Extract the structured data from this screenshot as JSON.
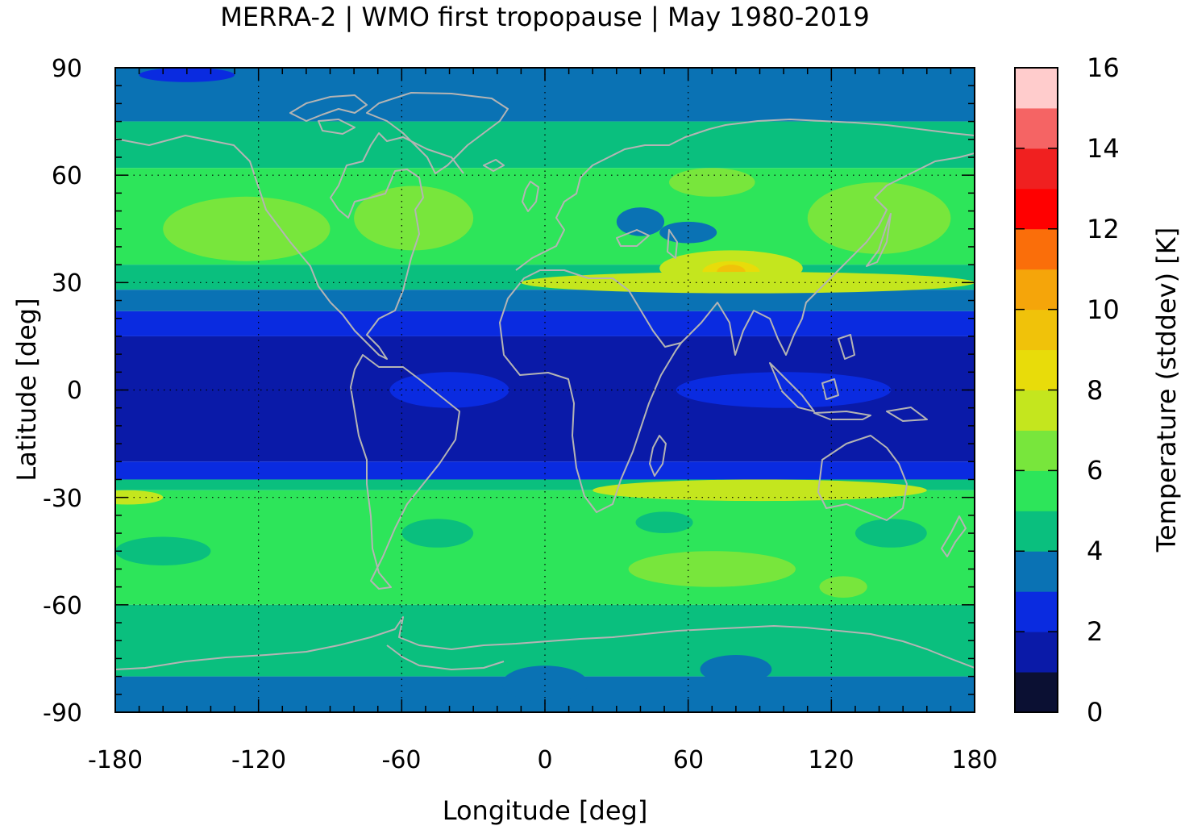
{
  "chart_data": {
    "type": "heatmap",
    "title": "MERRA-2 | WMO first tropopause | May 1980-2019",
    "xlabel": "Longitude [deg]",
    "ylabel": "Latitude [deg]",
    "xlim": [
      -180,
      180
    ],
    "ylim": [
      -90,
      90
    ],
    "x_ticks": [
      {
        "value": -180,
        "label": "-180"
      },
      {
        "value": -120,
        "label": "-120"
      },
      {
        "value": -60,
        "label": "-60"
      },
      {
        "value": 0,
        "label": "0"
      },
      {
        "value": 60,
        "label": "60"
      },
      {
        "value": 120,
        "label": "120"
      },
      {
        "value": 180,
        "label": "180"
      }
    ],
    "y_ticks": [
      {
        "value": 90,
        "label": "90"
      },
      {
        "value": 60,
        "label": "60"
      },
      {
        "value": 30,
        "label": "30"
      },
      {
        "value": 0,
        "label": "0"
      },
      {
        "value": -30,
        "label": "-30"
      },
      {
        "value": -60,
        "label": "-60"
      },
      {
        "value": -90,
        "label": "-90"
      }
    ],
    "grid": true,
    "colorbar": {
      "label": "Temperature (stddev) [K]",
      "range": [
        0,
        16
      ],
      "ticks": [
        {
          "value": 0,
          "label": "0"
        },
        {
          "value": 2,
          "label": "2"
        },
        {
          "value": 4,
          "label": "4"
        },
        {
          "value": 6,
          "label": "6"
        },
        {
          "value": 8,
          "label": "8"
        },
        {
          "value": 10,
          "label": "10"
        },
        {
          "value": 12,
          "label": "12"
        },
        {
          "value": 14,
          "label": "14"
        },
        {
          "value": 16,
          "label": "16"
        }
      ],
      "levels": [
        {
          "from": 0,
          "to": 1,
          "color": "#0b1033"
        },
        {
          "from": 1,
          "to": 2,
          "color": "#0a1aa8"
        },
        {
          "from": 2,
          "to": 3,
          "color": "#0a2be0"
        },
        {
          "from": 3,
          "to": 4,
          "color": "#0a72b4"
        },
        {
          "from": 4,
          "to": 5,
          "color": "#0abf7e"
        },
        {
          "from": 5,
          "to": 6,
          "color": "#2de55a"
        },
        {
          "from": 6,
          "to": 7,
          "color": "#78e63c"
        },
        {
          "from": 7,
          "to": 8,
          "color": "#c4e61e"
        },
        {
          "from": 8,
          "to": 9,
          "color": "#e8dc0a"
        },
        {
          "from": 9,
          "to": 10,
          "color": "#f0c20a"
        },
        {
          "from": 10,
          "to": 11,
          "color": "#f5a50a"
        },
        {
          "from": 11,
          "to": 12,
          "color": "#fa6e0a"
        },
        {
          "from": 12,
          "to": 13,
          "color": "#ff0000"
        },
        {
          "from": 13,
          "to": 14,
          "color": "#f02020"
        },
        {
          "from": 14,
          "to": 15,
          "color": "#f56464"
        },
        {
          "from": 15,
          "to": 16,
          "color": "#ffcccc"
        }
      ]
    },
    "zonal_pattern": [
      {
        "lat_from": 75,
        "lat_to": 90,
        "value": 3.5
      },
      {
        "lat_from": 62,
        "lat_to": 75,
        "value": 4.5
      },
      {
        "lat_from": 35,
        "lat_to": 62,
        "value": 5.5
      },
      {
        "lat_from": 28,
        "lat_to": 35,
        "value": 4.5
      },
      {
        "lat_from": 22,
        "lat_to": 28,
        "value": 3.5
      },
      {
        "lat_from": 15,
        "lat_to": 22,
        "value": 2.5
      },
      {
        "lat_from": -20,
        "lat_to": 15,
        "value": 1.5
      },
      {
        "lat_from": -25,
        "lat_to": -20,
        "value": 2.5
      },
      {
        "lat_from": -28,
        "lat_to": -25,
        "value": 4.5
      },
      {
        "lat_from": -60,
        "lat_to": -28,
        "value": 5.5
      },
      {
        "lat_from": -80,
        "lat_to": -60,
        "value": 4.5
      },
      {
        "lat_from": -90,
        "lat_to": -80,
        "value": 3.5
      }
    ],
    "features": [
      {
        "lon": -125,
        "lat": 45,
        "rx": 35,
        "ry": 9,
        "value": 6.5
      },
      {
        "lon": -55,
        "lat": 48,
        "rx": 25,
        "ry": 9,
        "value": 6.5
      },
      {
        "lon": 140,
        "lat": 48,
        "rx": 30,
        "ry": 10,
        "value": 6.5
      },
      {
        "lon": 70,
        "lat": 58,
        "rx": 18,
        "ry": 4,
        "value": 6.5
      },
      {
        "lon": 78,
        "lat": 34,
        "rx": 30,
        "ry": 5,
        "value": 7.5
      },
      {
        "lon": 78,
        "lat": 33,
        "rx": 12,
        "ry": 3,
        "value": 8.5
      },
      {
        "lon": 78,
        "lat": 33,
        "rx": 6,
        "ry": 2,
        "value": 9.5
      },
      {
        "lon": 85,
        "lat": 30,
        "rx": 95,
        "ry": 3,
        "value": 7.0
      },
      {
        "lon": 60,
        "lat": 44,
        "rx": 12,
        "ry": 3,
        "value": 3.5
      },
      {
        "lon": 40,
        "lat": 47,
        "rx": 10,
        "ry": 4,
        "value": 3.5
      },
      {
        "lon": 90,
        "lat": -28,
        "rx": 70,
        "ry": 3,
        "value": 7.5
      },
      {
        "lon": -175,
        "lat": -30,
        "rx": 15,
        "ry": 2,
        "value": 7.5
      },
      {
        "lon": 70,
        "lat": -50,
        "rx": 35,
        "ry": 5,
        "value": 6.5
      },
      {
        "lon": 125,
        "lat": -55,
        "rx": 10,
        "ry": 3,
        "value": 6.5
      },
      {
        "lon": 50,
        "lat": -37,
        "rx": 12,
        "ry": 3,
        "value": 4.5
      },
      {
        "lon": -45,
        "lat": -40,
        "rx": 15,
        "ry": 4,
        "value": 4.5
      },
      {
        "lon": -160,
        "lat": -45,
        "rx": 20,
        "ry": 4,
        "value": 4.5
      },
      {
        "lon": 145,
        "lat": -40,
        "rx": 15,
        "ry": 4,
        "value": 4.5
      },
      {
        "lon": 0,
        "lat": -82,
        "rx": 18,
        "ry": 5,
        "value": 3.5
      },
      {
        "lon": 80,
        "lat": -78,
        "rx": 15,
        "ry": 4,
        "value": 3.5
      },
      {
        "lon": -40,
        "lat": 0,
        "rx": 25,
        "ry": 5,
        "value": 2.5
      },
      {
        "lon": 100,
        "lat": 0,
        "rx": 45,
        "ry": 5,
        "value": 2.5
      },
      {
        "lon": -150,
        "lat": 88,
        "rx": 20,
        "ry": 2,
        "value": 2.5
      }
    ],
    "overlay": "coastlines"
  }
}
